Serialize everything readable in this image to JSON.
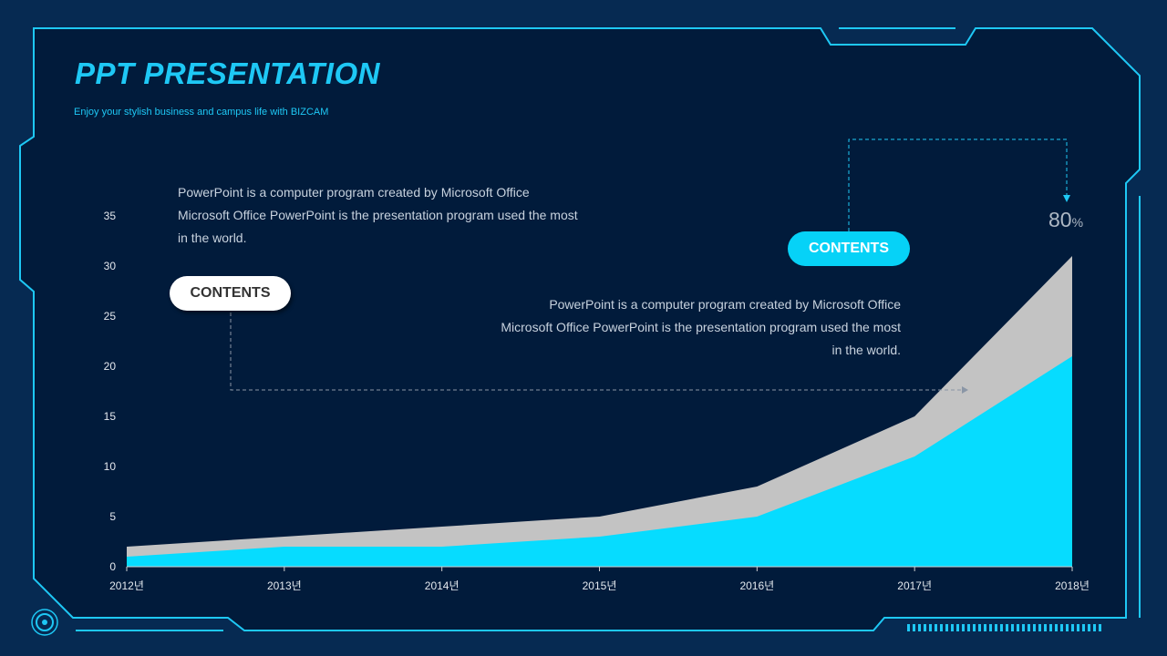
{
  "header": {
    "title": "PPT PRESENTATION",
    "subtitle": "Enjoy your stylish business and campus life with BIZCAM"
  },
  "callouts": {
    "left_text": [
      "PowerPoint is a computer program created by Microsoft Office",
      "Microsoft Office PowerPoint is the presentation program used the most",
      "in the world."
    ],
    "right_text": [
      "PowerPoint is a computer program created by Microsoft Office",
      "Microsoft Office PowerPoint is the presentation program used the most",
      "in the world."
    ],
    "left_badge": "CONTENTS",
    "right_badge": "CONTENTS",
    "percent_value": "80",
    "percent_unit": "%"
  },
  "colors": {
    "background": "#062a52",
    "panel": "#011b3b",
    "frame": "#1ec8f5",
    "series_front": "#06dcff",
    "series_back": "#c3c3c3"
  },
  "chart_data": {
    "type": "area",
    "categories": [
      "2012년",
      "2013년",
      "2014년",
      "2015년",
      "2016년",
      "2017년",
      "2018년"
    ],
    "series": [
      {
        "values": [
          2,
          3,
          4,
          5,
          8,
          15,
          31
        ]
      },
      {
        "values": [
          1,
          2,
          2,
          3,
          5,
          11,
          21
        ]
      }
    ],
    "yticks": [
      "0",
      "5",
      "10",
      "15",
      "20",
      "25",
      "30",
      "35"
    ],
    "ylim": [
      0,
      35
    ],
    "grid": false,
    "legend": "none",
    "title": "",
    "xlabel": "",
    "ylabel": ""
  }
}
